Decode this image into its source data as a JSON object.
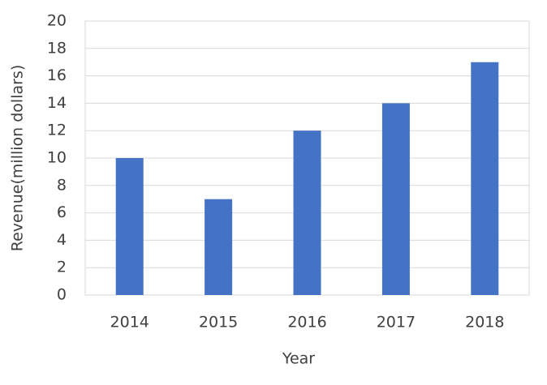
{
  "chart_data": {
    "type": "bar",
    "x_label": "Year",
    "y_label": "Revenue(million dollars)",
    "categories": [
      "2014",
      "2015",
      "2016",
      "2017",
      "2018"
    ],
    "values": [
      10,
      7,
      12,
      14,
      17
    ],
    "color": "#4472c4",
    "ylim": [
      0,
      20
    ],
    "yticks": [
      0,
      2,
      4,
      6,
      8,
      10,
      12,
      14,
      16,
      18,
      20
    ],
    "grid": true
  }
}
